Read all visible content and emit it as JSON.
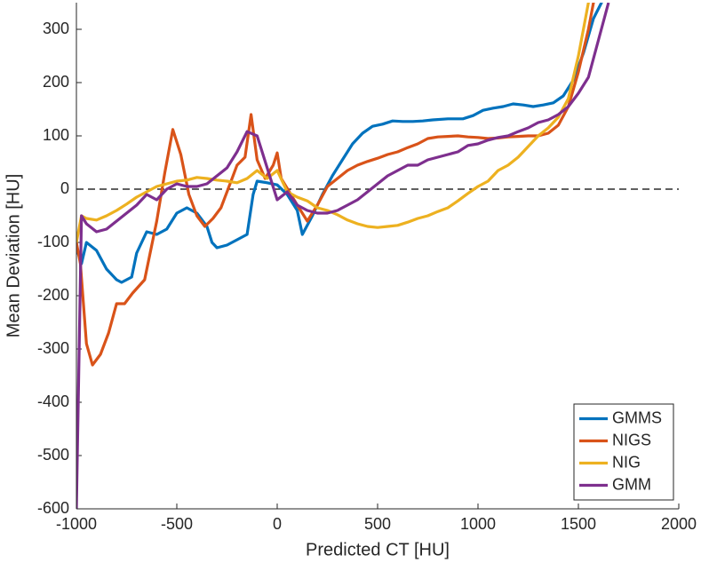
{
  "chart_data": {
    "type": "line",
    "xlabel": "Predicted CT [HU]",
    "ylabel": "Mean Deviation [HU]",
    "xlim": [
      -1000,
      2000
    ],
    "xticks": [
      -1000,
      -500,
      0,
      500,
      1000,
      1500,
      2000
    ],
    "ylim": [
      -600,
      350
    ],
    "yticks": [
      -600,
      -500,
      -400,
      -300,
      -200,
      -100,
      0,
      100,
      200,
      300
    ],
    "reference_line": 0,
    "legend": "lower right",
    "series": [
      {
        "name": "GMMS",
        "color": "#0072bd",
        "x": [
          -1000,
          -975,
          -950,
          -900,
          -850,
          -800,
          -775,
          -725,
          -700,
          -650,
          -600,
          -550,
          -500,
          -450,
          -400,
          -350,
          -325,
          -300,
          -250,
          -200,
          -150,
          -120,
          -100,
          -50,
          0,
          50,
          100,
          125,
          175,
          225,
          275,
          325,
          375,
          425,
          475,
          525,
          575,
          625,
          675,
          725,
          775,
          850,
          925,
          975,
          1025,
          1075,
          1125,
          1175,
          1225,
          1275,
          1325,
          1375,
          1425,
          1475,
          1525,
          1575,
          1615,
          1630
        ],
        "values": [
          -110,
          -140,
          -100,
          -115,
          -150,
          -170,
          -175,
          -165,
          -120,
          -80,
          -85,
          -75,
          -45,
          -35,
          -45,
          -70,
          -100,
          -110,
          -105,
          -95,
          -85,
          -10,
          15,
          12,
          8,
          -10,
          -40,
          -85,
          -50,
          -10,
          25,
          55,
          85,
          105,
          118,
          122,
          128,
          127,
          127,
          128,
          130,
          132,
          132,
          138,
          148,
          152,
          155,
          160,
          158,
          155,
          158,
          162,
          175,
          205,
          255,
          320,
          350,
          380
        ]
      },
      {
        "name": "NIGS",
        "color": "#d95319",
        "x": [
          -1000,
          -980,
          -950,
          -920,
          -880,
          -840,
          -800,
          -760,
          -720,
          -660,
          -600,
          -560,
          -520,
          -480,
          -440,
          -400,
          -360,
          -320,
          -280,
          -240,
          -200,
          -160,
          -130,
          -100,
          -60,
          -20,
          0,
          20,
          60,
          100,
          150,
          200,
          250,
          300,
          350,
          400,
          450,
          500,
          550,
          600,
          650,
          700,
          750,
          800,
          850,
          900,
          950,
          1000,
          1050,
          1100,
          1150,
          1200,
          1250,
          1300,
          1350,
          1400,
          1450,
          1500,
          1550,
          1580
        ],
        "values": [
          -100,
          -140,
          -290,
          -330,
          -310,
          -270,
          -215,
          -215,
          -195,
          -170,
          -60,
          30,
          112,
          65,
          -10,
          -50,
          -70,
          -55,
          -35,
          5,
          45,
          60,
          140,
          55,
          20,
          45,
          68,
          20,
          -5,
          -30,
          -60,
          -30,
          5,
          20,
          35,
          45,
          52,
          58,
          65,
          70,
          78,
          85,
          95,
          98,
          99,
          100,
          98,
          97,
          95,
          96,
          98,
          99,
          100,
          100,
          105,
          120,
          155,
          220,
          300,
          360
        ]
      },
      {
        "name": "NIG",
        "color": "#edb120",
        "x": [
          -1000,
          -975,
          -950,
          -900,
          -850,
          -800,
          -750,
          -700,
          -650,
          -600,
          -550,
          -500,
          -450,
          -400,
          -350,
          -300,
          -250,
          -200,
          -150,
          -100,
          -50,
          0,
          50,
          100,
          150,
          200,
          250,
          300,
          350,
          400,
          450,
          500,
          550,
          600,
          650,
          700,
          750,
          800,
          850,
          900,
          950,
          1000,
          1050,
          1100,
          1150,
          1200,
          1250,
          1300,
          1350,
          1400,
          1450,
          1500,
          1550,
          1560
        ],
        "values": [
          -100,
          -50,
          -55,
          -58,
          -50,
          -40,
          -28,
          -15,
          -5,
          5,
          10,
          15,
          17,
          22,
          20,
          17,
          15,
          12,
          20,
          35,
          20,
          35,
          -5,
          -15,
          -22,
          -35,
          -40,
          -48,
          -58,
          -65,
          -70,
          -72,
          -70,
          -68,
          -62,
          -55,
          -50,
          -42,
          -35,
          -22,
          -8,
          5,
          15,
          35,
          45,
          60,
          80,
          100,
          115,
          135,
          170,
          250,
          350,
          380
        ]
      },
      {
        "name": "GMM",
        "color": "#7e2f8e",
        "x": [
          -1000,
          -975,
          -950,
          -900,
          -850,
          -800,
          -750,
          -700,
          -650,
          -600,
          -550,
          -500,
          -450,
          -400,
          -350,
          -300,
          -250,
          -200,
          -150,
          -100,
          -50,
          0,
          50,
          100,
          150,
          200,
          250,
          300,
          350,
          400,
          450,
          500,
          550,
          600,
          650,
          700,
          750,
          800,
          850,
          900,
          950,
          1000,
          1050,
          1100,
          1150,
          1200,
          1250,
          1300,
          1350,
          1400,
          1450,
          1500,
          1550,
          1600,
          1650
        ],
        "values": [
          -600,
          -50,
          -65,
          -80,
          -75,
          -60,
          -45,
          -30,
          -10,
          -20,
          0,
          10,
          5,
          5,
          10,
          25,
          40,
          70,
          108,
          100,
          40,
          -20,
          -5,
          -30,
          -40,
          -45,
          -45,
          -40,
          -30,
          -20,
          -5,
          10,
          25,
          35,
          45,
          45,
          55,
          60,
          65,
          70,
          82,
          85,
          92,
          97,
          100,
          108,
          115,
          125,
          130,
          140,
          155,
          180,
          210,
          280,
          350
        ]
      }
    ]
  }
}
